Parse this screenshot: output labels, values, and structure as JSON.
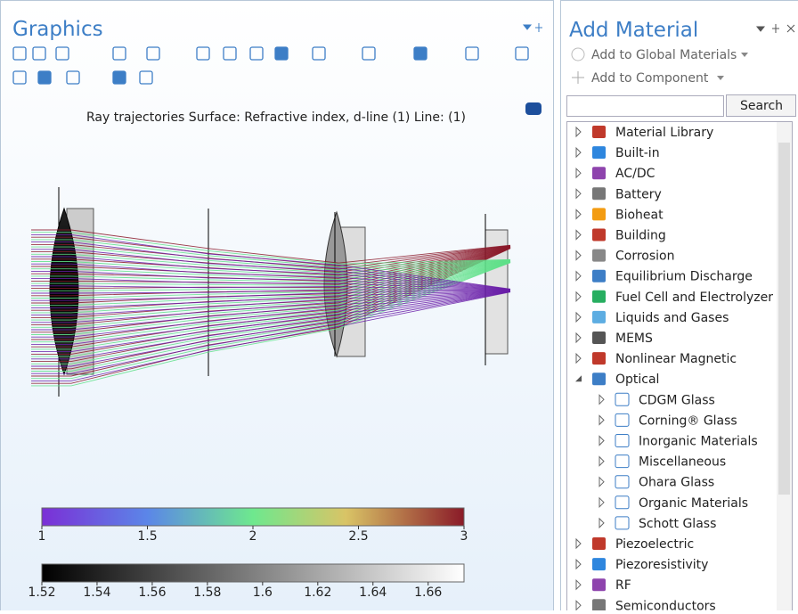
{
  "graphics": {
    "title": "Graphics",
    "plot_title": "Ray trajectories  Surface: Refractive index, d-line (1)  Line: (1)",
    "colorbars": [
      {
        "lim": [
          1,
          3
        ],
        "ticks": [
          1,
          1.5,
          2,
          2.5,
          3
        ]
      },
      {
        "lim": [
          1.52,
          1.673
        ],
        "ticks": [
          1.52,
          1.54,
          1.56,
          1.58,
          1.6,
          1.62,
          1.64,
          1.66
        ]
      }
    ]
  },
  "add_material": {
    "title": "Add Material",
    "actions": [
      "Add to Global Materials",
      "Add to Component"
    ],
    "search_button": "Search",
    "tree": [
      {
        "label": "Material Library"
      },
      {
        "label": "Built-in"
      },
      {
        "label": "AC/DC"
      },
      {
        "label": "Battery"
      },
      {
        "label": "Bioheat"
      },
      {
        "label": "Building"
      },
      {
        "label": "Corrosion"
      },
      {
        "label": "Equilibrium Discharge"
      },
      {
        "label": "Fuel Cell and Electrolyzer"
      },
      {
        "label": "Liquids and Gases"
      },
      {
        "label": "MEMS"
      },
      {
        "label": "Nonlinear Magnetic"
      },
      {
        "label": "Optical",
        "children": [
          {
            "label": "CDGM Glass"
          },
          {
            "label": "Corning® Glass"
          },
          {
            "label": "Inorganic Materials"
          },
          {
            "label": "Miscellaneous"
          },
          {
            "label": "Ohara Glass"
          },
          {
            "label": "Organic Materials"
          },
          {
            "label": "Schott Glass"
          }
        ]
      },
      {
        "label": "Piezoelectric"
      },
      {
        "label": "Piezoresistivity"
      },
      {
        "label": "RF"
      },
      {
        "label": "Semiconductors"
      }
    ]
  }
}
